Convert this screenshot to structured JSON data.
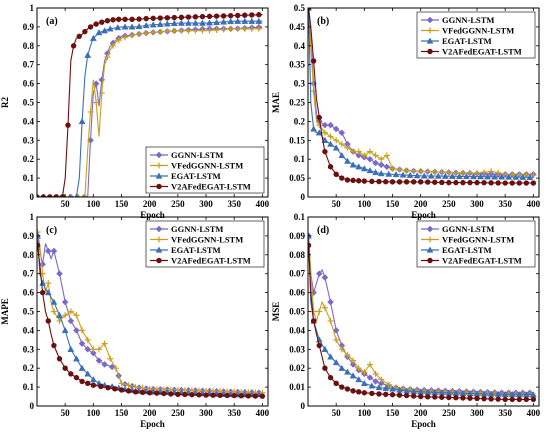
{
  "chart_data": [
    {
      "type": "line",
      "panel_label": "(a)",
      "xlabel": "Epoch",
      "ylabel": "R2",
      "xlim": [
        0,
        410
      ],
      "ylim": [
        0,
        1.0
      ],
      "xticks": [
        50,
        100,
        150,
        200,
        250,
        300,
        350,
        400
      ],
      "yticks": [
        0,
        0.1,
        0.2,
        0.3,
        0.4,
        0.5,
        0.6,
        0.7,
        0.8,
        0.9,
        1.0
      ],
      "xtick_labels": [
        "50",
        "100",
        "150",
        "200",
        "250",
        "300",
        "350",
        "400"
      ],
      "ytick_labels": [
        "0",
        "0.1",
        "0.2",
        "0.3",
        "0.4",
        "0.5",
        "0.6",
        "0.7",
        "0.8",
        "0.9",
        "1"
      ],
      "legend_position": "bottom-right",
      "series": [
        {
          "name": "GGNN-LSTM",
          "color": "#7b68c8",
          "marker": "diamond",
          "x": [
            0,
            90,
            95,
            100,
            105,
            110,
            115,
            120,
            130,
            140,
            150,
            175,
            200,
            250,
            300,
            350,
            400
          ],
          "y": [
            0,
            0,
            0.3,
            0.55,
            0.6,
            0.48,
            0.62,
            0.72,
            0.8,
            0.83,
            0.85,
            0.86,
            0.87,
            0.88,
            0.89,
            0.89,
            0.9
          ]
        },
        {
          "name": "VFedGGNN-LSTM",
          "color": "#c8a020",
          "marker": "plus",
          "x": [
            0,
            85,
            90,
            95,
            100,
            105,
            110,
            115,
            120,
            130,
            140,
            150,
            175,
            200,
            250,
            300,
            350,
            400
          ],
          "y": [
            0,
            0,
            0.25,
            0.45,
            0.62,
            0.5,
            0.32,
            0.55,
            0.7,
            0.78,
            0.82,
            0.84,
            0.86,
            0.87,
            0.88,
            0.88,
            0.89,
            0.89
          ]
        },
        {
          "name": "EGAT-LSTM",
          "color": "#3a6fb8",
          "marker": "triangle",
          "x": [
            0,
            70,
            75,
            80,
            85,
            90,
            95,
            100,
            110,
            120,
            130,
            150,
            175,
            200,
            250,
            300,
            350,
            400
          ],
          "y": [
            0,
            0,
            0.1,
            0.4,
            0.64,
            0.75,
            0.8,
            0.84,
            0.87,
            0.88,
            0.89,
            0.9,
            0.9,
            0.91,
            0.92,
            0.92,
            0.93,
            0.93
          ]
        },
        {
          "name": "V2AFedEGAT-LSTM",
          "color": "#6b0f0f",
          "marker": "circle",
          "x": [
            0,
            45,
            50,
            55,
            60,
            65,
            70,
            80,
            90,
            100,
            110,
            120,
            130,
            140,
            150,
            175,
            200,
            250,
            300,
            350,
            400
          ],
          "y": [
            0,
            0,
            0.1,
            0.38,
            0.72,
            0.8,
            0.84,
            0.86,
            0.89,
            0.91,
            0.92,
            0.93,
            0.935,
            0.94,
            0.94,
            0.94,
            0.945,
            0.95,
            0.955,
            0.96,
            0.965
          ]
        }
      ]
    },
    {
      "type": "line",
      "panel_label": "(b)",
      "xlabel": "Epoch",
      "ylabel": "MAE",
      "xlim": [
        0,
        410
      ],
      "ylim": [
        0,
        0.5
      ],
      "xticks": [
        50,
        100,
        150,
        200,
        250,
        300,
        350,
        400
      ],
      "yticks": [
        0,
        0.05,
        0.1,
        0.15,
        0.2,
        0.25,
        0.3,
        0.35,
        0.4,
        0.45,
        0.5
      ],
      "xtick_labels": [
        "50",
        "100",
        "150",
        "200",
        "250",
        "300",
        "350",
        "400"
      ],
      "ytick_labels": [
        "0",
        "0.05",
        "0.1",
        "0.15",
        "0.2",
        "0.25",
        "0.3",
        "0.35",
        "0.4",
        "0.45",
        "0.5"
      ],
      "legend_position": "top-right",
      "series": [
        {
          "name": "GGNN-LSTM",
          "color": "#7b68c8",
          "marker": "diamond",
          "x": [
            1,
            5,
            10,
            15,
            20,
            30,
            40,
            50,
            60,
            70,
            80,
            90,
            100,
            110,
            120,
            130,
            140,
            150,
            175,
            200,
            250,
            300,
            350,
            400
          ],
          "y": [
            0.5,
            0.42,
            0.3,
            0.22,
            0.2,
            0.19,
            0.19,
            0.18,
            0.17,
            0.14,
            0.12,
            0.11,
            0.105,
            0.1,
            0.09,
            0.085,
            0.08,
            0.075,
            0.07,
            0.068,
            0.065,
            0.062,
            0.06,
            0.06
          ]
        },
        {
          "name": "VFedGGNN-LSTM",
          "color": "#c8a020",
          "marker": "plus",
          "x": [
            1,
            5,
            10,
            15,
            20,
            30,
            40,
            50,
            60,
            70,
            80,
            90,
            100,
            110,
            120,
            130,
            140,
            150,
            175,
            200,
            250,
            300,
            325,
            350,
            400
          ],
          "y": [
            0.5,
            0.4,
            0.28,
            0.2,
            0.19,
            0.17,
            0.16,
            0.15,
            0.14,
            0.13,
            0.12,
            0.12,
            0.11,
            0.12,
            0.11,
            0.1,
            0.11,
            0.075,
            0.07,
            0.068,
            0.065,
            0.063,
            0.068,
            0.06,
            0.058
          ]
        },
        {
          "name": "EGAT-LSTM",
          "color": "#3a6fb8",
          "marker": "triangle",
          "x": [
            1,
            5,
            10,
            15,
            20,
            30,
            40,
            50,
            60,
            70,
            80,
            90,
            100,
            110,
            120,
            130,
            150,
            175,
            200,
            250,
            300,
            350,
            400
          ],
          "y": [
            0.5,
            0.25,
            0.18,
            0.17,
            0.17,
            0.15,
            0.14,
            0.13,
            0.11,
            0.095,
            0.085,
            0.08,
            0.075,
            0.07,
            0.065,
            0.062,
            0.06,
            0.058,
            0.056,
            0.055,
            0.054,
            0.053,
            0.052
          ]
        },
        {
          "name": "V2AFedEGAT-LSTM",
          "color": "#6b0f0f",
          "marker": "circle",
          "x": [
            1,
            5,
            10,
            15,
            20,
            25,
            30,
            40,
            50,
            60,
            70,
            80,
            90,
            100,
            120,
            150,
            175,
            200,
            250,
            300,
            350,
            400
          ],
          "y": [
            0.5,
            0.45,
            0.36,
            0.26,
            0.21,
            0.16,
            0.12,
            0.08,
            0.06,
            0.05,
            0.045,
            0.044,
            0.043,
            0.042,
            0.041,
            0.04,
            0.04,
            0.04,
            0.038,
            0.038,
            0.037,
            0.037
          ]
        }
      ]
    },
    {
      "type": "line",
      "panel_label": "(c)",
      "xlabel": "Epoch",
      "ylabel": "MAPE",
      "xlim": [
        0,
        410
      ],
      "ylim": [
        0,
        1.0
      ],
      "xticks": [
        50,
        100,
        150,
        200,
        250,
        300,
        350,
        400
      ],
      "yticks": [
        0,
        0.1,
        0.2,
        0.3,
        0.4,
        0.5,
        0.6,
        0.7,
        0.8,
        0.9,
        1.0
      ],
      "xtick_labels": [
        "50",
        "100",
        "150",
        "200",
        "250",
        "300",
        "350",
        "400"
      ],
      "ytick_labels": [
        "0",
        "0.1",
        "0.2",
        "0.3",
        "0.4",
        "0.5",
        "0.6",
        "0.7",
        "0.8",
        "0.9",
        "1"
      ],
      "legend_position": "top-right",
      "series": [
        {
          "name": "GGNN-LSTM",
          "color": "#7b68c8",
          "marker": "diamond",
          "x": [
            1,
            5,
            10,
            15,
            20,
            25,
            30,
            40,
            50,
            60,
            70,
            80,
            90,
            100,
            110,
            120,
            140,
            150,
            175,
            200,
            250,
            300,
            350,
            400
          ],
          "y": [
            0.9,
            0.82,
            0.75,
            0.86,
            0.82,
            0.78,
            0.82,
            0.7,
            0.55,
            0.45,
            0.4,
            0.33,
            0.3,
            0.28,
            0.24,
            0.22,
            0.2,
            0.12,
            0.1,
            0.09,
            0.085,
            0.08,
            0.075,
            0.07
          ]
        },
        {
          "name": "VFedGGNN-LSTM",
          "color": "#c8a020",
          "marker": "plus",
          "x": [
            1,
            5,
            10,
            15,
            20,
            25,
            30,
            40,
            50,
            60,
            70,
            80,
            90,
            100,
            110,
            120,
            130,
            140,
            150,
            175,
            200,
            250,
            300,
            350,
            400
          ],
          "y": [
            0.92,
            0.85,
            0.7,
            0.6,
            0.65,
            0.55,
            0.5,
            0.45,
            0.48,
            0.5,
            0.48,
            0.4,
            0.35,
            0.3,
            0.3,
            0.33,
            0.25,
            0.2,
            0.12,
            0.1,
            0.09,
            0.085,
            0.08,
            0.075,
            0.07
          ]
        },
        {
          "name": "EGAT-LSTM",
          "color": "#3a6fb8",
          "marker": "triangle",
          "x": [
            1,
            5,
            10,
            15,
            20,
            30,
            40,
            50,
            60,
            70,
            80,
            90,
            100,
            110,
            120,
            140,
            150,
            175,
            200,
            250,
            300,
            350,
            400
          ],
          "y": [
            0.9,
            0.7,
            0.65,
            0.62,
            0.6,
            0.55,
            0.48,
            0.4,
            0.3,
            0.25,
            0.2,
            0.17,
            0.14,
            0.12,
            0.11,
            0.1,
            0.09,
            0.08,
            0.075,
            0.07,
            0.065,
            0.06,
            0.06
          ]
        },
        {
          "name": "V2AFedEGAT-LSTM",
          "color": "#6b0f0f",
          "marker": "circle",
          "x": [
            1,
            5,
            10,
            15,
            20,
            25,
            30,
            40,
            50,
            60,
            70,
            80,
            90,
            100,
            120,
            150,
            175,
            200,
            250,
            300,
            350,
            400
          ],
          "y": [
            0.85,
            0.75,
            0.6,
            0.5,
            0.45,
            0.38,
            0.32,
            0.25,
            0.2,
            0.17,
            0.15,
            0.13,
            0.12,
            0.11,
            0.1,
            0.085,
            0.075,
            0.07,
            0.062,
            0.058,
            0.055,
            0.052
          ]
        }
      ]
    },
    {
      "type": "line",
      "panel_label": "(d)",
      "xlabel": "Epoch",
      "ylabel": "MSE",
      "xlim": [
        0,
        410
      ],
      "ylim": [
        0,
        0.1
      ],
      "xticks": [
        50,
        100,
        150,
        200,
        250,
        300,
        350,
        400
      ],
      "yticks": [
        0,
        0.01,
        0.02,
        0.03,
        0.04,
        0.05,
        0.06,
        0.07,
        0.08,
        0.09,
        0.1
      ],
      "xtick_labels": [
        "50",
        "100",
        "150",
        "200",
        "250",
        "300",
        "350",
        "400"
      ],
      "ytick_labels": [
        "0",
        "0.01",
        "0.02",
        "0.03",
        "0.04",
        "0.05",
        "0.06",
        "0.07",
        "0.08",
        "0.09",
        "0.1"
      ],
      "legend_position": "top-right",
      "series": [
        {
          "name": "GGNN-LSTM",
          "color": "#7b68c8",
          "marker": "diamond",
          "x": [
            1,
            5,
            10,
            15,
            20,
            25,
            30,
            40,
            50,
            60,
            70,
            80,
            90,
            100,
            110,
            120,
            130,
            150,
            175,
            200,
            250,
            300,
            350,
            400
          ],
          "y": [
            0.09,
            0.07,
            0.06,
            0.065,
            0.07,
            0.072,
            0.068,
            0.055,
            0.04,
            0.032,
            0.026,
            0.022,
            0.019,
            0.017,
            0.015,
            0.013,
            0.012,
            0.01,
            0.009,
            0.0085,
            0.008,
            0.0075,
            0.007,
            0.007
          ]
        },
        {
          "name": "VFedGGNN-LSTM",
          "color": "#c8a020",
          "marker": "plus",
          "x": [
            1,
            5,
            10,
            15,
            20,
            25,
            30,
            40,
            50,
            60,
            70,
            80,
            90,
            100,
            110,
            120,
            130,
            150,
            175,
            200,
            250,
            300,
            350,
            400
          ],
          "y": [
            0.09,
            0.07,
            0.05,
            0.045,
            0.05,
            0.055,
            0.052,
            0.045,
            0.035,
            0.03,
            0.027,
            0.024,
            0.02,
            0.018,
            0.022,
            0.017,
            0.014,
            0.01,
            0.009,
            0.008,
            0.0075,
            0.007,
            0.0065,
            0.006
          ]
        },
        {
          "name": "EGAT-LSTM",
          "color": "#3a6fb8",
          "marker": "triangle",
          "x": [
            1,
            5,
            10,
            15,
            20,
            30,
            40,
            50,
            60,
            70,
            80,
            90,
            100,
            120,
            150,
            175,
            200,
            250,
            300,
            350,
            400
          ],
          "y": [
            0.09,
            0.055,
            0.045,
            0.04,
            0.035,
            0.03,
            0.026,
            0.023,
            0.02,
            0.018,
            0.016,
            0.014,
            0.012,
            0.01,
            0.009,
            0.008,
            0.0075,
            0.007,
            0.0065,
            0.0062,
            0.006
          ]
        },
        {
          "name": "V2AFedEGAT-LSTM",
          "color": "#6b0f0f",
          "marker": "circle",
          "x": [
            1,
            5,
            10,
            15,
            20,
            25,
            30,
            40,
            50,
            60,
            70,
            80,
            90,
            100,
            120,
            150,
            175,
            200,
            250,
            300,
            350,
            400
          ],
          "y": [
            0.085,
            0.06,
            0.045,
            0.038,
            0.032,
            0.026,
            0.02,
            0.015,
            0.012,
            0.01,
            0.009,
            0.008,
            0.0075,
            0.007,
            0.0065,
            0.006,
            0.0055,
            0.005,
            0.0045,
            0.004,
            0.0035,
            0.0035
          ]
        }
      ]
    }
  ]
}
